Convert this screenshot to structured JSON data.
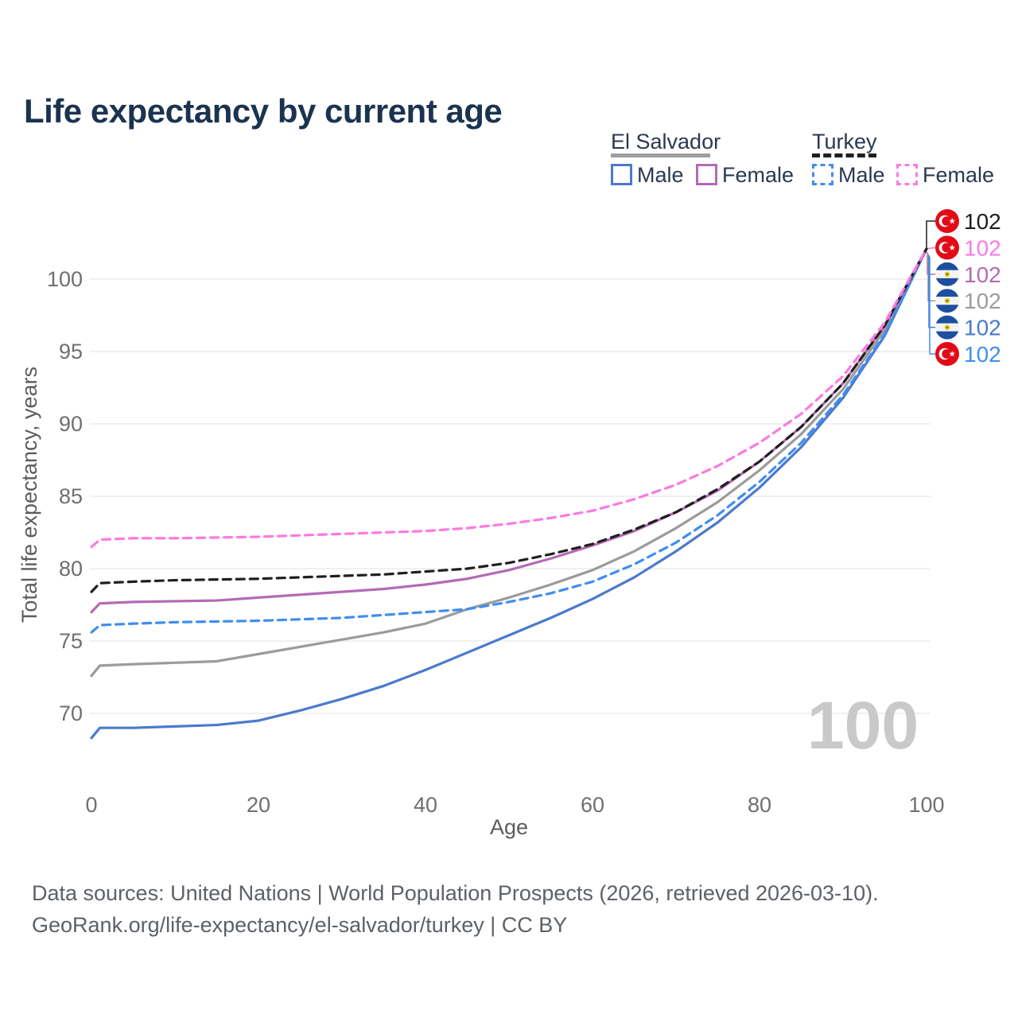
{
  "page": {
    "title": "Life expectancy by current age"
  },
  "legend": {
    "groups": [
      {
        "label": "El Salvador",
        "line_style": "solid",
        "underline_color": "#9e9e9e",
        "items": [
          {
            "label": "Male",
            "color": "#4b79cd",
            "dashed": false
          },
          {
            "label": "Female",
            "color": "#b46ab4",
            "dashed": false
          }
        ]
      },
      {
        "label": "Turkey",
        "line_style": "dashed",
        "underline_color": "#1f1f1f",
        "items": [
          {
            "label": "Male",
            "color": "#3f8df2",
            "dashed": true
          },
          {
            "label": "Female",
            "color": "#fb7ae1",
            "dashed": true
          }
        ]
      }
    ]
  },
  "chart_data": {
    "type": "line",
    "title": "Life expectancy by current age",
    "xlabel": "Age",
    "ylabel": "Total life expectancy, years",
    "xlim": [
      0,
      100
    ],
    "ylim": [
      67,
      103
    ],
    "x_ticks": [
      0,
      20,
      40,
      60,
      80,
      100
    ],
    "y_ticks": [
      70,
      75,
      80,
      85,
      90,
      95,
      100
    ],
    "grid": "horizontal-only",
    "legend_position": "top-right",
    "watermark_age": "100",
    "x": [
      0,
      1,
      5,
      10,
      15,
      20,
      25,
      30,
      35,
      40,
      45,
      50,
      55,
      60,
      65,
      70,
      75,
      80,
      85,
      90,
      95,
      100
    ],
    "series": [
      {
        "id": "es-male",
        "name": "El Salvador Male",
        "country": "El Salvador",
        "sex": "male",
        "color": "#4b79cd",
        "dashed": false,
        "values": [
          68.3,
          69.0,
          69.0,
          69.1,
          69.2,
          69.5,
          70.2,
          71.0,
          71.9,
          73.0,
          74.2,
          75.4,
          76.6,
          77.9,
          79.4,
          81.2,
          83.2,
          85.6,
          88.4,
          91.8,
          96.1,
          102.1
        ]
      },
      {
        "id": "es-total",
        "name": "El Salvador Both sexes",
        "country": "El Salvador",
        "sex": "total",
        "color": "#9b9b9b",
        "dashed": false,
        "values": [
          72.6,
          73.3,
          73.4,
          73.5,
          73.6,
          74.1,
          74.6,
          75.1,
          75.6,
          76.2,
          77.2,
          78.0,
          78.9,
          79.9,
          81.2,
          82.8,
          84.6,
          86.8,
          89.3,
          92.4,
          96.5,
          102.1
        ]
      },
      {
        "id": "es-female",
        "name": "El Salvador Female",
        "country": "El Salvador",
        "sex": "female",
        "color": "#b46ab4",
        "dashed": false,
        "values": [
          77.0,
          77.6,
          77.7,
          77.75,
          77.8,
          78.0,
          78.2,
          78.4,
          78.6,
          78.9,
          79.3,
          79.9,
          80.7,
          81.6,
          82.6,
          83.9,
          85.4,
          87.4,
          89.8,
          92.8,
          96.8,
          102.1
        ]
      },
      {
        "id": "tr-male",
        "name": "Turkey Male",
        "country": "Turkey",
        "sex": "male",
        "color": "#3f8df2",
        "dashed": true,
        "values": [
          75.6,
          76.1,
          76.2,
          76.3,
          76.35,
          76.4,
          76.5,
          76.6,
          76.8,
          77.0,
          77.2,
          77.7,
          78.3,
          79.1,
          80.3,
          81.8,
          83.7,
          86.0,
          88.7,
          92.0,
          96.2,
          102.1
        ]
      },
      {
        "id": "tr-total",
        "name": "Turkey Both sexes",
        "country": "Turkey",
        "sex": "total",
        "color": "#1f1f1f",
        "dashed": true,
        "values": [
          78.4,
          79.0,
          79.1,
          79.2,
          79.25,
          79.3,
          79.4,
          79.5,
          79.6,
          79.8,
          80.0,
          80.4,
          81.0,
          81.7,
          82.7,
          83.9,
          85.5,
          87.4,
          89.8,
          92.8,
          96.8,
          102.1
        ]
      },
      {
        "id": "tr-female",
        "name": "Turkey Female",
        "country": "Turkey",
        "sex": "female",
        "color": "#fb7ae1",
        "dashed": true,
        "values": [
          81.5,
          82.0,
          82.1,
          82.1,
          82.15,
          82.2,
          82.3,
          82.4,
          82.5,
          82.6,
          82.8,
          83.1,
          83.5,
          84.0,
          84.8,
          85.8,
          87.1,
          88.7,
          90.7,
          93.3,
          97.0,
          102.1
        ]
      }
    ],
    "rail": [
      {
        "series_id": "tr-total",
        "flag": "turkey",
        "label": "102"
      },
      {
        "series_id": "tr-female",
        "flag": "turkey",
        "label": "102"
      },
      {
        "series_id": "es-female",
        "flag": "el-salvador",
        "label": "102"
      },
      {
        "series_id": "es-total",
        "flag": "el-salvador",
        "label": "102"
      },
      {
        "series_id": "es-male",
        "flag": "el-salvador",
        "label": "102"
      },
      {
        "series_id": "tr-male",
        "flag": "turkey",
        "label": "102"
      }
    ]
  },
  "footer": {
    "line1": "Data sources: United Nations | World Population Prospects (2026, retrieved 2026-03-10).",
    "line2": "GeoRank.org/life-expectancy/el-salvador/turkey | CC BY"
  }
}
